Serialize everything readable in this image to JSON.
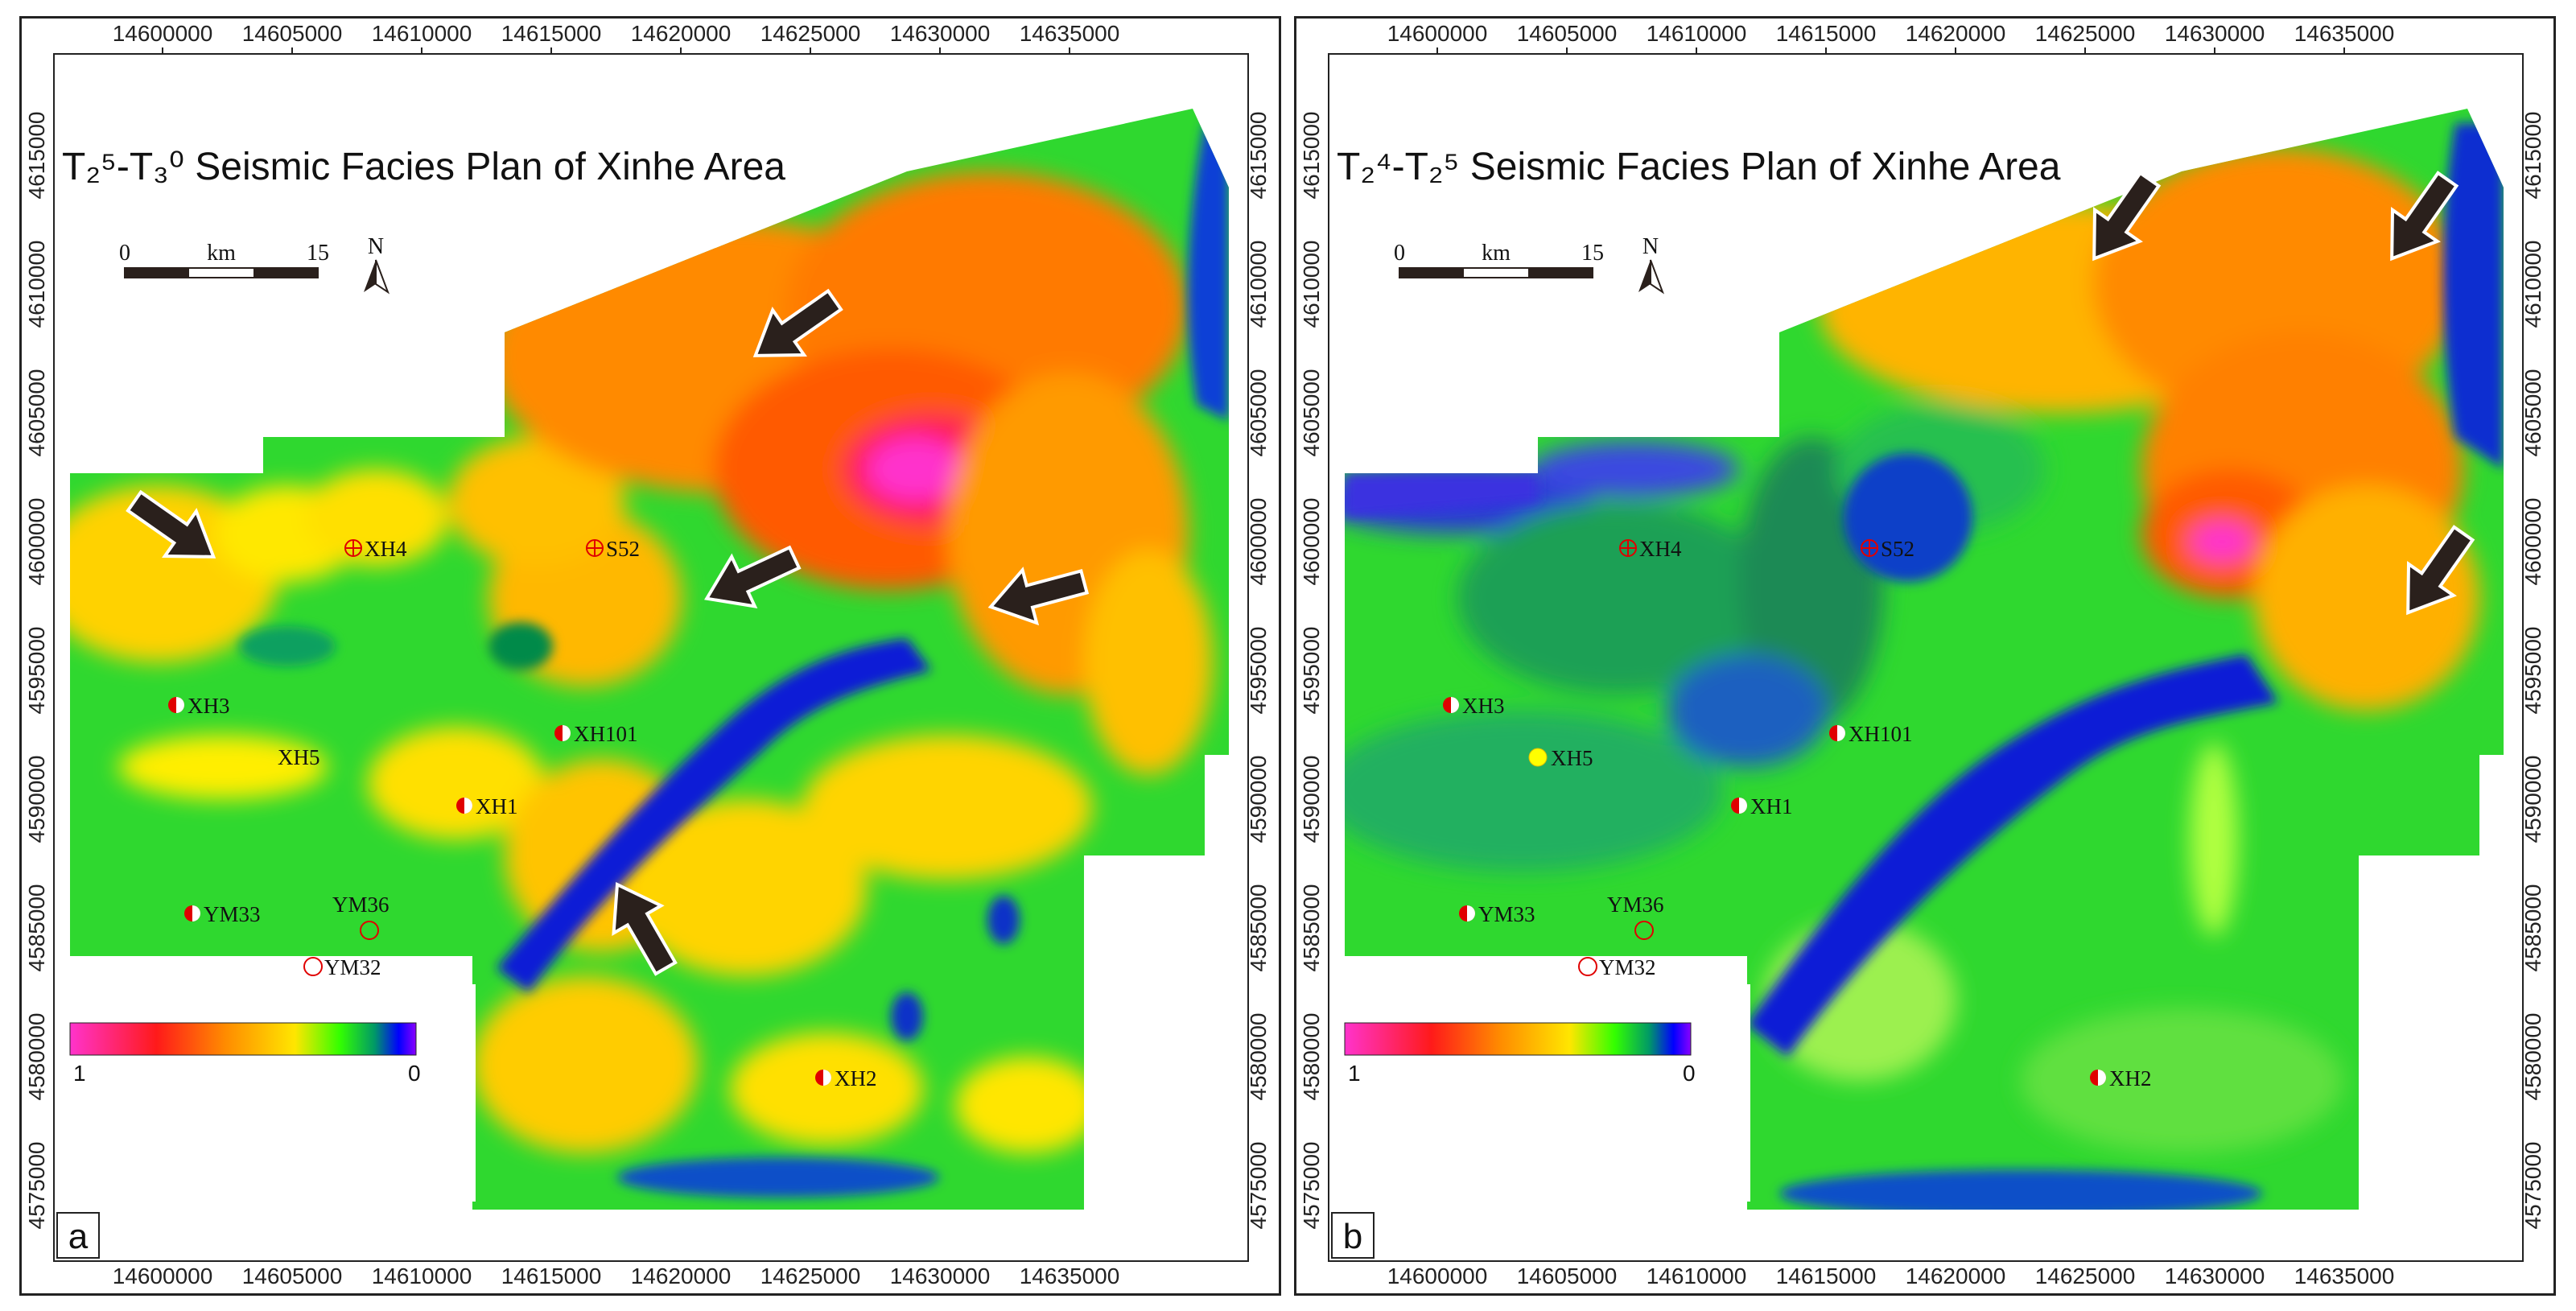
{
  "panels": [
    {
      "id": "a",
      "letter": "a",
      "title": "T₂⁵-T₃⁰ Seismic Facies Plan of Xinhe Area",
      "x_ticks": [
        "14600000",
        "14605000",
        "14610000",
        "14615000",
        "14620000",
        "14625000",
        "14630000",
        "14635000"
      ],
      "y_ticks": [
        "4615000",
        "4610000",
        "4605000",
        "4600000",
        "4595000",
        "4590000",
        "4585000",
        "4580000",
        "4575000"
      ],
      "scale_bar": {
        "start": "0",
        "unit": "km",
        "end": "15"
      },
      "north_label": "N",
      "legend": {
        "high": "1",
        "low": "0"
      },
      "wells": [
        {
          "name": "XH4",
          "symbol": "crossed-circle"
        },
        {
          "name": "S52",
          "symbol": "crossed-circle"
        },
        {
          "name": "XH3",
          "symbol": "half-filled"
        },
        {
          "name": "XH5",
          "symbol": "none"
        },
        {
          "name": "XH101",
          "symbol": "half-filled"
        },
        {
          "name": "XH1",
          "symbol": "half-filled"
        },
        {
          "name": "YM33",
          "symbol": "half-filled"
        },
        {
          "name": "YM36",
          "symbol": "open-circle"
        },
        {
          "name": "YM32",
          "symbol": "open-circle"
        },
        {
          "name": "XH2",
          "symbol": "half-filled"
        }
      ]
    },
    {
      "id": "b",
      "letter": "b",
      "title": "T₂⁴-T₂⁵ Seismic Facies Plan of Xinhe Area",
      "x_ticks": [
        "14600000",
        "14605000",
        "14610000",
        "14615000",
        "14620000",
        "14625000",
        "14630000",
        "14635000"
      ],
      "y_ticks": [
        "4615000",
        "4610000",
        "4605000",
        "4600000",
        "4595000",
        "4590000",
        "4585000",
        "4580000",
        "4575000"
      ],
      "scale_bar": {
        "start": "0",
        "unit": "km",
        "end": "15"
      },
      "north_label": "N",
      "legend": {
        "high": "1",
        "low": "0"
      },
      "wells": [
        {
          "name": "XH4",
          "symbol": "crossed-circle"
        },
        {
          "name": "S52",
          "symbol": "crossed-circle"
        },
        {
          "name": "XH3",
          "symbol": "half-filled"
        },
        {
          "name": "XH5",
          "symbol": "yellow-filled"
        },
        {
          "name": "XH101",
          "symbol": "half-filled"
        },
        {
          "name": "XH1",
          "symbol": "half-filled"
        },
        {
          "name": "YM33",
          "symbol": "half-filled"
        },
        {
          "name": "YM36",
          "symbol": "open-circle"
        },
        {
          "name": "YM32",
          "symbol": "open-circle"
        },
        {
          "name": "XH2",
          "symbol": "half-filled"
        }
      ]
    }
  ],
  "colors": {
    "scale": [
      "#ff33cc",
      "#ff0000",
      "#ff6a00",
      "#ffb300",
      "#ffff00",
      "#00ff00",
      "#00b04a",
      "#0000ff",
      "#7a00ff"
    ],
    "well_marker": "#e00000",
    "arrow_fill": "#2a201c"
  }
}
